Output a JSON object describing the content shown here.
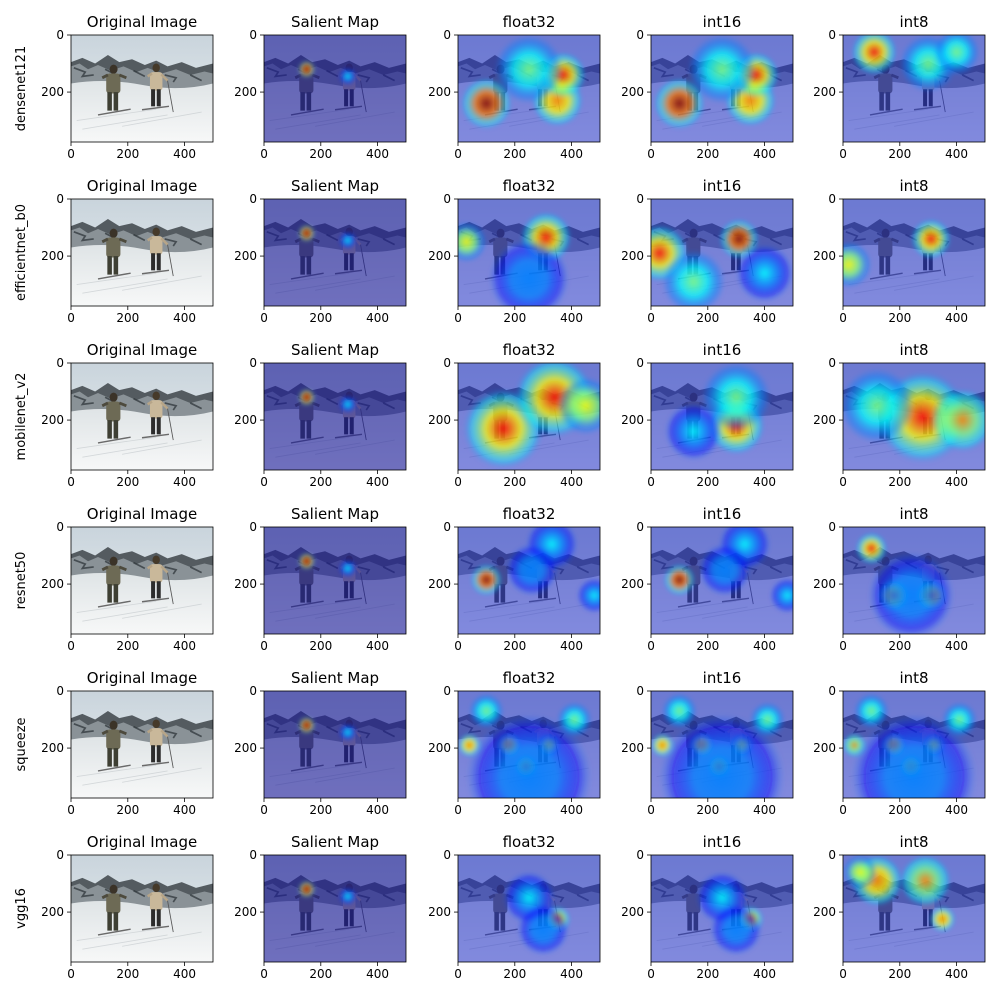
{
  "chart_data": {
    "type": "image-grid",
    "row_labels": [
      "densenet121",
      "efficientnet_b0",
      "mobilenet_v2",
      "resnet50",
      "squeeze",
      "vgg16"
    ],
    "column_titles": [
      "Original Image",
      "Salient Map",
      "float32",
      "int16",
      "int8"
    ],
    "x_ticks": [
      0,
      200,
      400
    ],
    "y_ticks": [
      0,
      200
    ],
    "image_extent": {
      "x": [
        0,
        500
      ],
      "y": [
        375,
        0
      ]
    },
    "colormap": [
      "#00007f",
      "#0000ff",
      "#0080ff",
      "#00ffff",
      "#80ff80",
      "#ffff00",
      "#ff8000",
      "#ff0000",
      "#7f0000"
    ],
    "salient_hotspots": [
      [
        {
          "x": 150,
          "y": 120,
          "r": 30,
          "v": 1.0
        },
        {
          "x": 295,
          "y": 145,
          "r": 30,
          "v": 0.35
        }
      ],
      [
        {
          "x": 150,
          "y": 120,
          "r": 30,
          "v": 1.0
        },
        {
          "x": 295,
          "y": 145,
          "r": 30,
          "v": 0.35
        }
      ],
      [
        {
          "x": 150,
          "y": 120,
          "r": 30,
          "v": 1.0
        },
        {
          "x": 295,
          "y": 145,
          "r": 30,
          "v": 0.35
        }
      ],
      [
        {
          "x": 150,
          "y": 120,
          "r": 30,
          "v": 1.0
        },
        {
          "x": 295,
          "y": 145,
          "r": 30,
          "v": 0.35
        }
      ],
      [
        {
          "x": 150,
          "y": 120,
          "r": 30,
          "v": 1.0
        },
        {
          "x": 295,
          "y": 145,
          "r": 30,
          "v": 0.35
        }
      ],
      [
        {
          "x": 150,
          "y": 120,
          "r": 30,
          "v": 1.0
        },
        {
          "x": 295,
          "y": 145,
          "r": 30,
          "v": 0.35
        }
      ]
    ],
    "heatmaps": [
      [
        [
          {
            "x": 100,
            "y": 240,
            "r": 90,
            "v": 0.95
          },
          {
            "x": 350,
            "y": 230,
            "r": 90,
            "v": 0.8
          },
          {
            "x": 370,
            "y": 140,
            "r": 80,
            "v": 0.85
          },
          {
            "x": 250,
            "y": 120,
            "r": 120,
            "v": 0.45
          }
        ],
        [
          {
            "x": 100,
            "y": 240,
            "r": 90,
            "v": 0.95
          },
          {
            "x": 350,
            "y": 230,
            "r": 90,
            "v": 0.8
          },
          {
            "x": 370,
            "y": 140,
            "r": 80,
            "v": 0.85
          },
          {
            "x": 250,
            "y": 120,
            "r": 120,
            "v": 0.45
          }
        ],
        [
          {
            "x": 110,
            "y": 60,
            "r": 80,
            "v": 0.9
          },
          {
            "x": 300,
            "y": 100,
            "r": 100,
            "v": 0.55
          },
          {
            "x": 400,
            "y": 60,
            "r": 80,
            "v": 0.45
          }
        ]
      ],
      [
        [
          {
            "x": 310,
            "y": 135,
            "r": 90,
            "v": 0.9
          },
          {
            "x": 30,
            "y": 150,
            "r": 70,
            "v": 0.6
          },
          {
            "x": 250,
            "y": 280,
            "r": 140,
            "v": 0.3
          }
        ],
        [
          {
            "x": 310,
            "y": 140,
            "r": 70,
            "v": 0.95
          },
          {
            "x": 30,
            "y": 190,
            "r": 100,
            "v": 0.85
          },
          {
            "x": 150,
            "y": 290,
            "r": 110,
            "v": 0.5
          },
          {
            "x": 400,
            "y": 260,
            "r": 100,
            "v": 0.4
          }
        ],
        [
          {
            "x": 310,
            "y": 140,
            "r": 70,
            "v": 0.9
          },
          {
            "x": 20,
            "y": 230,
            "r": 80,
            "v": 0.6
          }
        ]
      ],
      [
        [
          {
            "x": 160,
            "y": 230,
            "r": 140,
            "v": 0.9
          },
          {
            "x": 340,
            "y": 120,
            "r": 140,
            "v": 0.85
          },
          {
            "x": 450,
            "y": 150,
            "r": 100,
            "v": 0.6
          }
        ],
        [
          {
            "x": 300,
            "y": 220,
            "r": 100,
            "v": 0.85
          },
          {
            "x": 300,
            "y": 120,
            "r": 120,
            "v": 0.55
          },
          {
            "x": 150,
            "y": 240,
            "r": 100,
            "v": 0.4
          }
        ],
        [
          {
            "x": 280,
            "y": 190,
            "r": 160,
            "v": 0.85
          },
          {
            "x": 120,
            "y": 150,
            "r": 130,
            "v": 0.55
          },
          {
            "x": 420,
            "y": 200,
            "r": 110,
            "v": 0.7
          }
        ]
      ],
      [
        [
          {
            "x": 100,
            "y": 185,
            "r": 55,
            "v": 0.95
          },
          {
            "x": 330,
            "y": 60,
            "r": 90,
            "v": 0.4
          },
          {
            "x": 260,
            "y": 150,
            "r": 90,
            "v": 0.3
          },
          {
            "x": 480,
            "y": 240,
            "r": 60,
            "v": 0.4
          }
        ],
        [
          {
            "x": 100,
            "y": 185,
            "r": 55,
            "v": 0.95
          },
          {
            "x": 330,
            "y": 60,
            "r": 90,
            "v": 0.4
          },
          {
            "x": 260,
            "y": 150,
            "r": 90,
            "v": 0.3
          },
          {
            "x": 480,
            "y": 240,
            "r": 60,
            "v": 0.4
          }
        ],
        [
          {
            "x": 100,
            "y": 75,
            "r": 55,
            "v": 0.85
          },
          {
            "x": 180,
            "y": 240,
            "r": 55,
            "v": 0.85
          },
          {
            "x": 310,
            "y": 240,
            "r": 55,
            "v": 0.85
          },
          {
            "x": 240,
            "y": 240,
            "r": 150,
            "v": 0.3
          }
        ]
      ],
      [
        [
          {
            "x": 240,
            "y": 265,
            "r": 40,
            "v": 0.85
          },
          {
            "x": 180,
            "y": 190,
            "r": 40,
            "v": 0.75
          },
          {
            "x": 40,
            "y": 190,
            "r": 40,
            "v": 0.75
          },
          {
            "x": 320,
            "y": 190,
            "r": 40,
            "v": 0.6
          },
          {
            "x": 410,
            "y": 100,
            "r": 60,
            "v": 0.55
          },
          {
            "x": 100,
            "y": 70,
            "r": 60,
            "v": 0.5
          },
          {
            "x": 250,
            "y": 300,
            "r": 220,
            "v": 0.3
          }
        ],
        [
          {
            "x": 240,
            "y": 265,
            "r": 40,
            "v": 0.85
          },
          {
            "x": 180,
            "y": 190,
            "r": 40,
            "v": 0.75
          },
          {
            "x": 40,
            "y": 190,
            "r": 40,
            "v": 0.75
          },
          {
            "x": 320,
            "y": 190,
            "r": 40,
            "v": 0.6
          },
          {
            "x": 410,
            "y": 100,
            "r": 60,
            "v": 0.55
          },
          {
            "x": 100,
            "y": 70,
            "r": 60,
            "v": 0.5
          },
          {
            "x": 250,
            "y": 300,
            "r": 220,
            "v": 0.3
          }
        ],
        [
          {
            "x": 240,
            "y": 265,
            "r": 40,
            "v": 0.8
          },
          {
            "x": 180,
            "y": 190,
            "r": 40,
            "v": 0.75
          },
          {
            "x": 40,
            "y": 190,
            "r": 40,
            "v": 0.7
          },
          {
            "x": 320,
            "y": 190,
            "r": 40,
            "v": 0.6
          },
          {
            "x": 410,
            "y": 100,
            "r": 60,
            "v": 0.5
          },
          {
            "x": 100,
            "y": 70,
            "r": 60,
            "v": 0.5
          },
          {
            "x": 250,
            "y": 300,
            "r": 220,
            "v": 0.3
          }
        ]
      ],
      [
        [
          {
            "x": 350,
            "y": 225,
            "r": 45,
            "v": 0.9
          },
          {
            "x": 250,
            "y": 150,
            "r": 90,
            "v": 0.35
          },
          {
            "x": 300,
            "y": 260,
            "r": 90,
            "v": 0.3
          }
        ],
        [
          {
            "x": 350,
            "y": 225,
            "r": 45,
            "v": 0.9
          },
          {
            "x": 250,
            "y": 150,
            "r": 90,
            "v": 0.35
          },
          {
            "x": 300,
            "y": 260,
            "r": 90,
            "v": 0.3
          }
        ],
        [
          {
            "x": 120,
            "y": 90,
            "r": 90,
            "v": 0.8
          },
          {
            "x": 290,
            "y": 90,
            "r": 90,
            "v": 0.7
          },
          {
            "x": 350,
            "y": 225,
            "r": 45,
            "v": 0.8
          },
          {
            "x": 60,
            "y": 60,
            "r": 60,
            "v": 0.6
          }
        ]
      ]
    ]
  }
}
